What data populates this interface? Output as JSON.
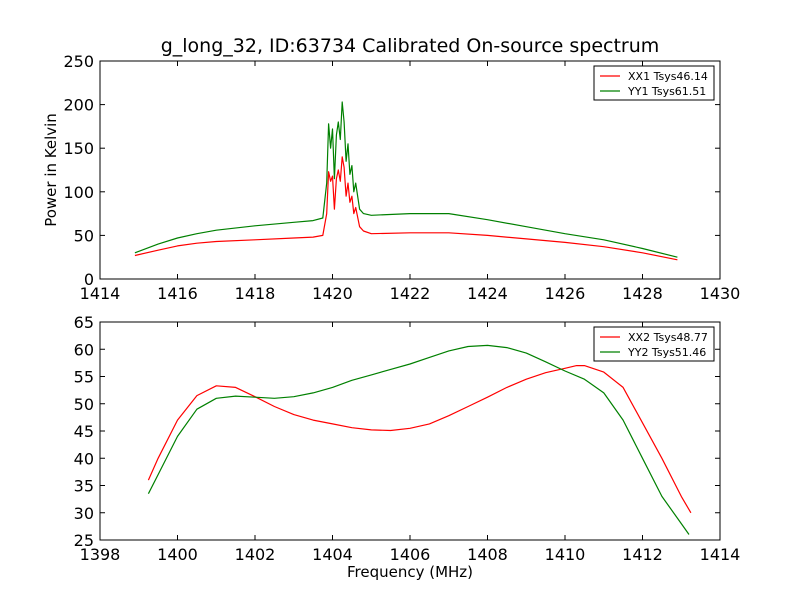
{
  "figure": {
    "title": "g_long_32, ID:63734 Calibrated On-source spectrum"
  },
  "chart_data": [
    {
      "type": "line",
      "title": "g_long_32, ID:63734 Calibrated On-source spectrum",
      "xlabel": "",
      "ylabel": "Power in Kelvin",
      "xlim": [
        1414,
        1430
      ],
      "ylim": [
        0,
        250
      ],
      "xticks": [
        "1414",
        "1416",
        "1418",
        "1420",
        "1422",
        "1424",
        "1426",
        "1428",
        "1430"
      ],
      "yticks": [
        "0",
        "50",
        "100",
        "150",
        "200",
        "250"
      ],
      "legend_position": "top-right",
      "grid": false,
      "series": [
        {
          "name": "XX1 Tsys46.14",
          "color": "#ff0000",
          "x": [
            1414.9,
            1415.5,
            1416,
            1416.5,
            1417,
            1418,
            1419,
            1419.5,
            1419.75,
            1419.85,
            1419.9,
            1419.95,
            1420.0,
            1420.05,
            1420.1,
            1420.15,
            1420.2,
            1420.25,
            1420.3,
            1420.35,
            1420.4,
            1420.45,
            1420.5,
            1420.55,
            1420.6,
            1420.7,
            1420.8,
            1421,
            1422,
            1423,
            1424,
            1425,
            1426,
            1427,
            1428,
            1428.9
          ],
          "y": [
            27,
            33,
            38,
            41,
            43,
            45,
            47,
            48,
            50,
            75,
            123,
            112,
            118,
            80,
            115,
            125,
            112,
            140,
            128,
            95,
            110,
            88,
            95,
            75,
            82,
            60,
            55,
            52,
            53,
            53,
            50,
            46,
            42,
            37,
            30,
            22
          ]
        },
        {
          "name": "YY1 Tsys61.51",
          "color": "#008000",
          "x": [
            1414.9,
            1415.5,
            1416,
            1416.5,
            1417,
            1418,
            1419,
            1419.5,
            1419.75,
            1419.85,
            1419.9,
            1419.95,
            1420.0,
            1420.05,
            1420.1,
            1420.15,
            1420.2,
            1420.25,
            1420.3,
            1420.35,
            1420.4,
            1420.45,
            1420.5,
            1420.55,
            1420.6,
            1420.7,
            1420.8,
            1421,
            1422,
            1423,
            1424,
            1425,
            1426,
            1427,
            1428,
            1428.9
          ],
          "y": [
            30,
            40,
            47,
            52,
            56,
            61,
            65,
            67,
            70,
            110,
            178,
            150,
            172,
            115,
            165,
            180,
            160,
            203,
            180,
            135,
            155,
            120,
            130,
            100,
            110,
            80,
            75,
            73,
            75,
            75,
            68,
            60,
            52,
            45,
            35,
            25
          ]
        }
      ]
    },
    {
      "type": "line",
      "title": "",
      "xlabel": "Frequency (MHz)",
      "ylabel": "",
      "xlim": [
        1398,
        1414
      ],
      "ylim": [
        25,
        65
      ],
      "xticks": [
        "1398",
        "1400",
        "1402",
        "1404",
        "1406",
        "1408",
        "1410",
        "1412",
        "1414"
      ],
      "yticks": [
        "25",
        "30",
        "35",
        "40",
        "45",
        "50",
        "55",
        "60",
        "65"
      ],
      "legend_position": "top-right",
      "grid": false,
      "series": [
        {
          "name": "XX2 Tsys48.77",
          "color": "#ff0000",
          "x": [
            1399.25,
            1399.5,
            1400,
            1400.5,
            1401,
            1401.5,
            1402,
            1402.5,
            1403,
            1403.5,
            1404,
            1404.5,
            1405,
            1405.5,
            1406,
            1406.5,
            1407,
            1407.5,
            1408,
            1408.5,
            1409,
            1409.5,
            1410,
            1410.3,
            1410.5,
            1411,
            1411.5,
            1412,
            1412.5,
            1413,
            1413.25
          ],
          "y": [
            36,
            40,
            47,
            51.5,
            53.3,
            53,
            51.3,
            49.5,
            48,
            47,
            46.3,
            45.6,
            45.2,
            45.1,
            45.5,
            46.3,
            47.8,
            49.5,
            51.2,
            53,
            54.5,
            55.7,
            56.5,
            57,
            57,
            55.8,
            53,
            46.5,
            40,
            33,
            30
          ]
        },
        {
          "name": "YY2 Tsys51.46",
          "color": "#008000",
          "x": [
            1399.25,
            1399.5,
            1400,
            1400.5,
            1401,
            1401.5,
            1402,
            1402.5,
            1403,
            1403.5,
            1404,
            1404.5,
            1405,
            1405.5,
            1406,
            1406.5,
            1407,
            1407.5,
            1408,
            1408.5,
            1409,
            1409.5,
            1410,
            1410.5,
            1411,
            1411.5,
            1412,
            1412.5,
            1413,
            1413.2
          ],
          "y": [
            33.5,
            37,
            44,
            49,
            51,
            51.4,
            51.2,
            51,
            51.3,
            52,
            53,
            54.3,
            55.3,
            56.3,
            57.3,
            58.5,
            59.7,
            60.5,
            60.7,
            60.3,
            59.3,
            57.7,
            56,
            54.5,
            52,
            47,
            40,
            33,
            28,
            26
          ]
        }
      ]
    }
  ]
}
